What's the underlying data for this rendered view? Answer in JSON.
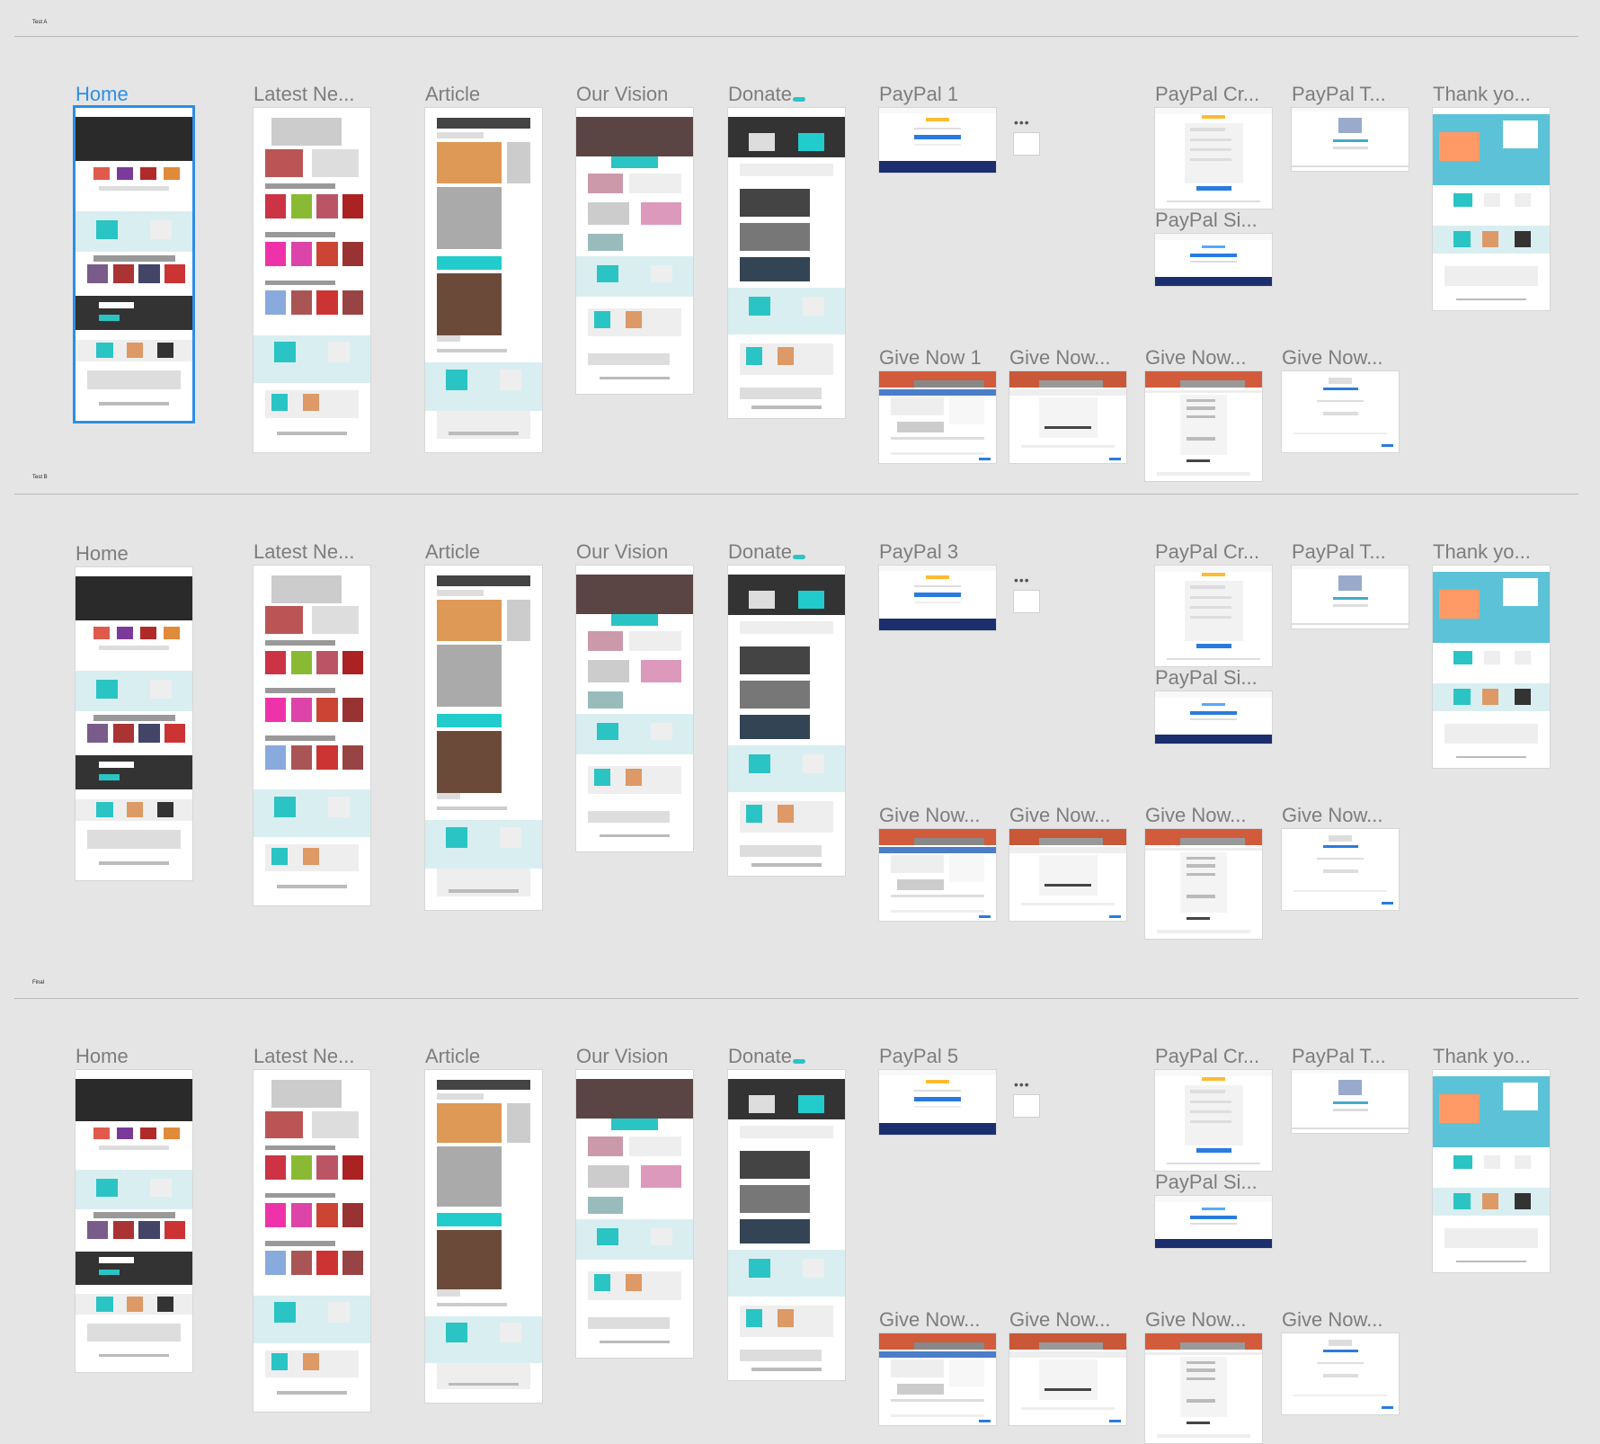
{
  "sections": [
    {
      "label": "Test A",
      "frames": [
        {
          "key": "home",
          "title": "Home",
          "selected": true
        },
        {
          "key": "news",
          "title": "Latest Ne..."
        },
        {
          "key": "article",
          "title": "Article"
        },
        {
          "key": "vision",
          "title": "Our Vision"
        },
        {
          "key": "donate",
          "title": "Donate"
        },
        {
          "key": "paypal1",
          "title": "PayPal 1"
        },
        {
          "key": "ppcr",
          "title": "PayPal Cr..."
        },
        {
          "key": "pptr",
          "title": "PayPal T..."
        },
        {
          "key": "thank",
          "title": "Thank yo..."
        },
        {
          "key": "ppsi",
          "title": "PayPal Si..."
        },
        {
          "key": "give1",
          "title": "Give Now 1"
        },
        {
          "key": "give2",
          "title": "Give Now..."
        },
        {
          "key": "give3",
          "title": "Give Now..."
        },
        {
          "key": "give4",
          "title": "Give Now..."
        }
      ]
    },
    {
      "label": "Test B",
      "frames": [
        {
          "key": "home",
          "title": "Home"
        },
        {
          "key": "news",
          "title": "Latest Ne..."
        },
        {
          "key": "article",
          "title": "Article"
        },
        {
          "key": "vision",
          "title": "Our Vision"
        },
        {
          "key": "donate",
          "title": "Donate"
        },
        {
          "key": "paypal1",
          "title": "PayPal 3"
        },
        {
          "key": "ppcr",
          "title": "PayPal Cr..."
        },
        {
          "key": "pptr",
          "title": "PayPal T..."
        },
        {
          "key": "thank",
          "title": "Thank yo..."
        },
        {
          "key": "ppsi",
          "title": "PayPal Si..."
        },
        {
          "key": "give1",
          "title": "Give Now..."
        },
        {
          "key": "give2",
          "title": "Give Now..."
        },
        {
          "key": "give3",
          "title": "Give Now..."
        },
        {
          "key": "give4",
          "title": "Give Now..."
        }
      ]
    },
    {
      "label": "Final",
      "frames": [
        {
          "key": "home",
          "title": "Home"
        },
        {
          "key": "news",
          "title": "Latest Ne..."
        },
        {
          "key": "article",
          "title": "Article"
        },
        {
          "key": "vision",
          "title": "Our Vision"
        },
        {
          "key": "donate",
          "title": "Donate"
        },
        {
          "key": "paypal1",
          "title": "PayPal 5"
        },
        {
          "key": "ppcr",
          "title": "PayPal Cr..."
        },
        {
          "key": "pptr",
          "title": "PayPal T..."
        },
        {
          "key": "thank",
          "title": "Thank yo..."
        },
        {
          "key": "ppsi",
          "title": "PayPal Si..."
        },
        {
          "key": "give1",
          "title": "Give Now..."
        },
        {
          "key": "give2",
          "title": "Give Now..."
        },
        {
          "key": "give3",
          "title": "Give Now..."
        },
        {
          "key": "give4",
          "title": "Give Now..."
        }
      ]
    }
  ],
  "overflow_indicator": "•••",
  "colors": {
    "canvas": "#e5e5e5",
    "selection": "#2c8ee8",
    "title": "#7d7d7d",
    "teal": "#2ac4c4",
    "dark": "#2a2a2a",
    "paypal_navy": "#1b2f6e",
    "pale_teal": "#d9eef0"
  }
}
